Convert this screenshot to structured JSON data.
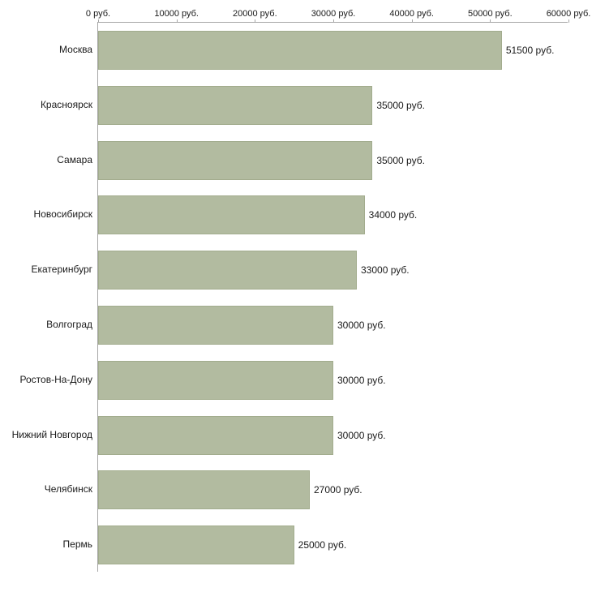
{
  "chart_data": {
    "type": "bar",
    "orientation": "horizontal",
    "title": "",
    "xlabel": "",
    "ylabel": "",
    "categories": [
      "Москва",
      "Красноярск",
      "Самара",
      "Новосибирск",
      "Екатеринбург",
      "Волгоград",
      "Ростов-На-Дону",
      "Нижний Новгород",
      "Челябинск",
      "Пермь"
    ],
    "values": [
      51500,
      35000,
      35000,
      34000,
      33000,
      30000,
      30000,
      30000,
      27000,
      25000
    ],
    "value_labels": [
      "51500 руб.",
      "35000 руб.",
      "35000 руб.",
      "34000 руб.",
      "33000 руб.",
      "30000 руб.",
      "30000 руб.",
      "30000 руб.",
      "27000 руб.",
      "25000 руб."
    ],
    "x_ticks": [
      {
        "value": 0,
        "label": "0 руб."
      },
      {
        "value": 10000,
        "label": "10000 руб."
      },
      {
        "value": 20000,
        "label": "20000 руб."
      },
      {
        "value": 30000,
        "label": "30000 руб."
      },
      {
        "value": 40000,
        "label": "40000 руб."
      },
      {
        "value": 50000,
        "label": "50000 руб."
      },
      {
        "value": 60000,
        "label": "60000 руб."
      }
    ],
    "xlim": [
      0,
      60000
    ],
    "grid": false,
    "legend": "none",
    "bar_color": "#b2bba0",
    "bar_border_color": "#a2ac8d",
    "axis_color": "#a6a6a6",
    "text_color": "#1a1a1a"
  }
}
